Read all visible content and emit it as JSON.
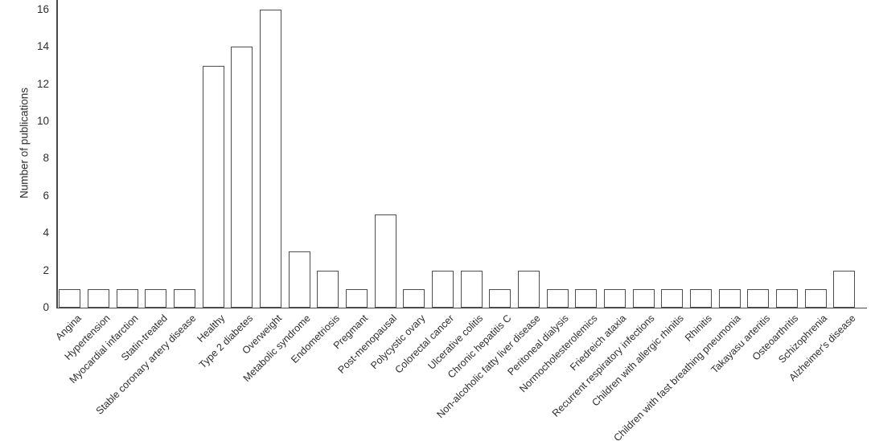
{
  "chart_data": {
    "type": "bar",
    "title": "",
    "xlabel": "",
    "ylabel": "Number of publications",
    "ylim": [
      0,
      16
    ],
    "yticks": [
      0,
      2,
      4,
      6,
      8,
      10,
      12,
      14,
      16
    ],
    "grid": false,
    "legend": null,
    "bar_fill": "#ffffff",
    "bar_border": "#4d4d4d",
    "axis_color": "#474747",
    "categories": [
      "Angina",
      "Hypertension",
      "Myocardial infarction",
      "Statin-treated",
      "Stable coronary artery disease",
      "Healthy",
      "Type 2 diabetes",
      "Overweight",
      "Metabolic syndrome",
      "Endometriosis",
      "Pregmant",
      "Post-menopausal",
      "Polycystic ovary",
      "Colorectal cancer",
      "Ulcerative colitis",
      "Chronic hepatitis C",
      "Non-alcoholic fatty liver disease",
      "Peritoneal dialysis",
      "Normocholesterolemics",
      "Friedreich ataxia",
      "Recurrent respiratory infections",
      "Children with allergic rhinitis",
      "Rhinitis",
      "Children with fast breathing pneumonia",
      "Takayasu arteritis",
      "Osteoarthritis",
      "Schizophrenia",
      "Alzheimer's disease"
    ],
    "values": [
      1,
      1,
      1,
      1,
      1,
      13,
      14,
      16,
      3,
      2,
      1,
      5,
      1,
      2,
      2,
      1,
      2,
      1,
      1,
      1,
      1,
      1,
      1,
      1,
      1,
      1,
      1,
      2
    ]
  }
}
